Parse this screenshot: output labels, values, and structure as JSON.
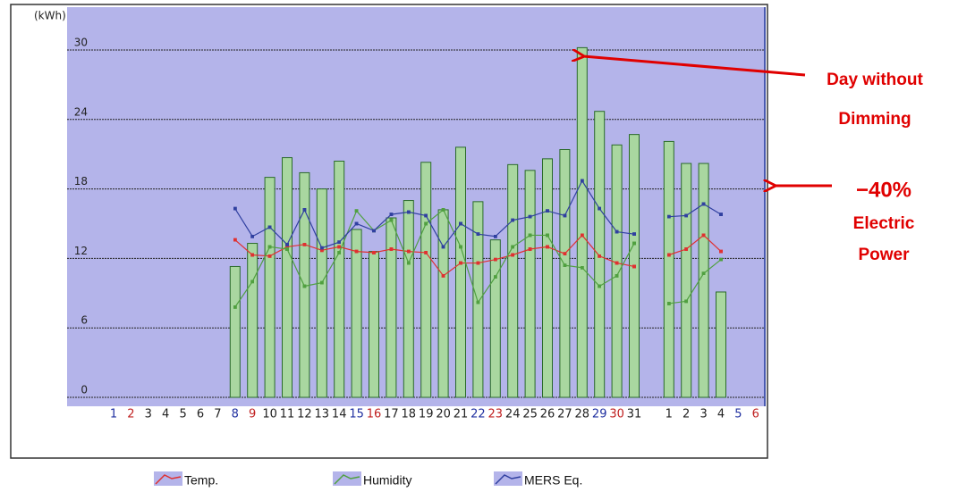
{
  "chart_data": {
    "type": "bar-line",
    "y_axis_label": "(kWh)",
    "ylim": [
      0,
      33.7
    ],
    "yticks": [
      0,
      6,
      12,
      18,
      24,
      30
    ],
    "grid": true,
    "categories": [
      "1",
      "2",
      "3",
      "4",
      "5",
      "6",
      "7",
      "8",
      "9",
      "10",
      "11",
      "12",
      "13",
      "14",
      "15",
      "16",
      "17",
      "18",
      "19",
      "20",
      "21",
      "22",
      "23",
      "24",
      "25",
      "26",
      "27",
      "28",
      "29",
      "30",
      "31",
      null,
      "1",
      "2",
      "3",
      "4",
      "5",
      "6"
    ],
    "category_colors": [
      "#2030a0",
      "#c02020",
      "#222",
      "#222",
      "#222",
      "#222",
      "#222",
      "#2030a0",
      "#c02020",
      "#222",
      "#222",
      "#222",
      "#222",
      "#222",
      "#2030a0",
      "#c02020",
      "#222",
      "#222",
      "#222",
      "#222",
      "#222",
      "#2030a0",
      "#c02020",
      "#222",
      "#222",
      "#222",
      "#222",
      "#222",
      "#2030a0",
      "#c02020",
      "#222",
      null,
      "#222",
      "#222",
      "#222",
      "#222",
      "#2030a0",
      "#c02020"
    ],
    "bar_color": "#a9d7a0",
    "values": [
      null,
      null,
      null,
      null,
      null,
      null,
      null,
      11.3,
      13.3,
      19.0,
      20.7,
      19.4,
      18.0,
      20.4,
      14.5,
      12.6,
      15.5,
      17.0,
      20.3,
      16.2,
      21.6,
      16.9,
      13.6,
      20.1,
      19.6,
      20.6,
      21.4,
      30.2,
      24.7,
      21.8,
      22.7,
      null,
      22.1,
      20.2,
      20.2,
      9.1,
      null,
      null
    ],
    "series": [
      {
        "name": "Temp.",
        "color": "#e03030",
        "values": [
          null,
          null,
          null,
          null,
          null,
          null,
          null,
          13.6,
          12.3,
          12.2,
          13.0,
          13.2,
          12.7,
          13.0,
          12.6,
          12.5,
          12.8,
          12.6,
          12.5,
          10.5,
          11.6,
          11.6,
          11.9,
          12.3,
          12.8,
          13.0,
          12.4,
          14.0,
          12.2,
          11.6,
          11.3,
          null,
          12.3,
          12.8,
          14.0,
          12.6,
          null,
          null
        ]
      },
      {
        "name": "Humidity",
        "color": "#50a040",
        "values": [
          null,
          null,
          null,
          null,
          null,
          null,
          null,
          7.8,
          10.0,
          13.0,
          12.8,
          9.6,
          9.9,
          12.5,
          16.1,
          14.4,
          15.3,
          11.6,
          15.0,
          16.2,
          13.0,
          8.2,
          10.4,
          13.0,
          14.0,
          14.0,
          11.4,
          11.2,
          9.6,
          10.5,
          13.3,
          null,
          8.1,
          8.3,
          10.7,
          11.9,
          null,
          null
        ]
      },
      {
        "name": "MERS Eq.",
        "color": "#3040a0",
        "values": [
          null,
          null,
          null,
          null,
          null,
          null,
          null,
          16.3,
          13.9,
          14.7,
          13.2,
          16.2,
          12.9,
          13.4,
          15.0,
          14.4,
          15.8,
          16.0,
          15.7,
          13.0,
          15.0,
          14.1,
          13.9,
          15.3,
          15.6,
          16.1,
          15.7,
          18.7,
          16.3,
          14.3,
          14.1,
          null,
          15.6,
          15.7,
          16.7,
          15.8,
          null,
          null
        ]
      }
    ],
    "annotations": [
      {
        "lines": [
          "Day without",
          "Dimming"
        ]
      },
      {
        "lines": [
          "−40%",
          "Electric",
          "Power"
        ]
      }
    ]
  }
}
